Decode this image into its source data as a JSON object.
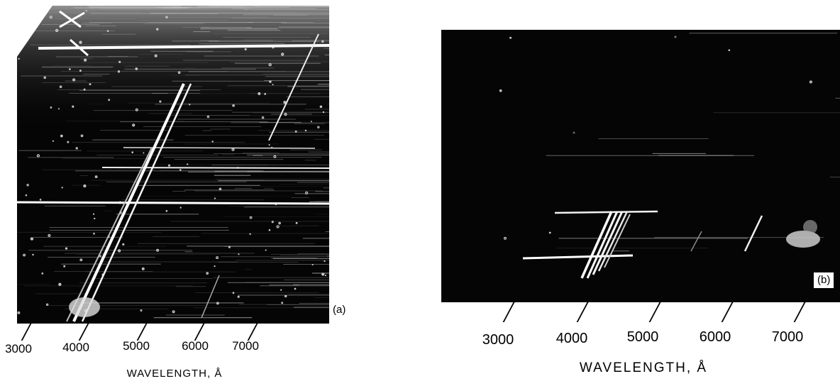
{
  "panel_a": {
    "letter": "(a)",
    "x_axis": {
      "title": "WAVELENGTH, Å",
      "ticks": [
        "3000",
        "4000",
        "5000",
        "6000",
        "7000"
      ]
    }
  },
  "panel_b": {
    "letter": "(b)",
    "x_axis": {
      "title": "WAVELENGTH, Å",
      "ticks": [
        "3000",
        "4000",
        "5000",
        "6000",
        "7000"
      ]
    }
  }
}
